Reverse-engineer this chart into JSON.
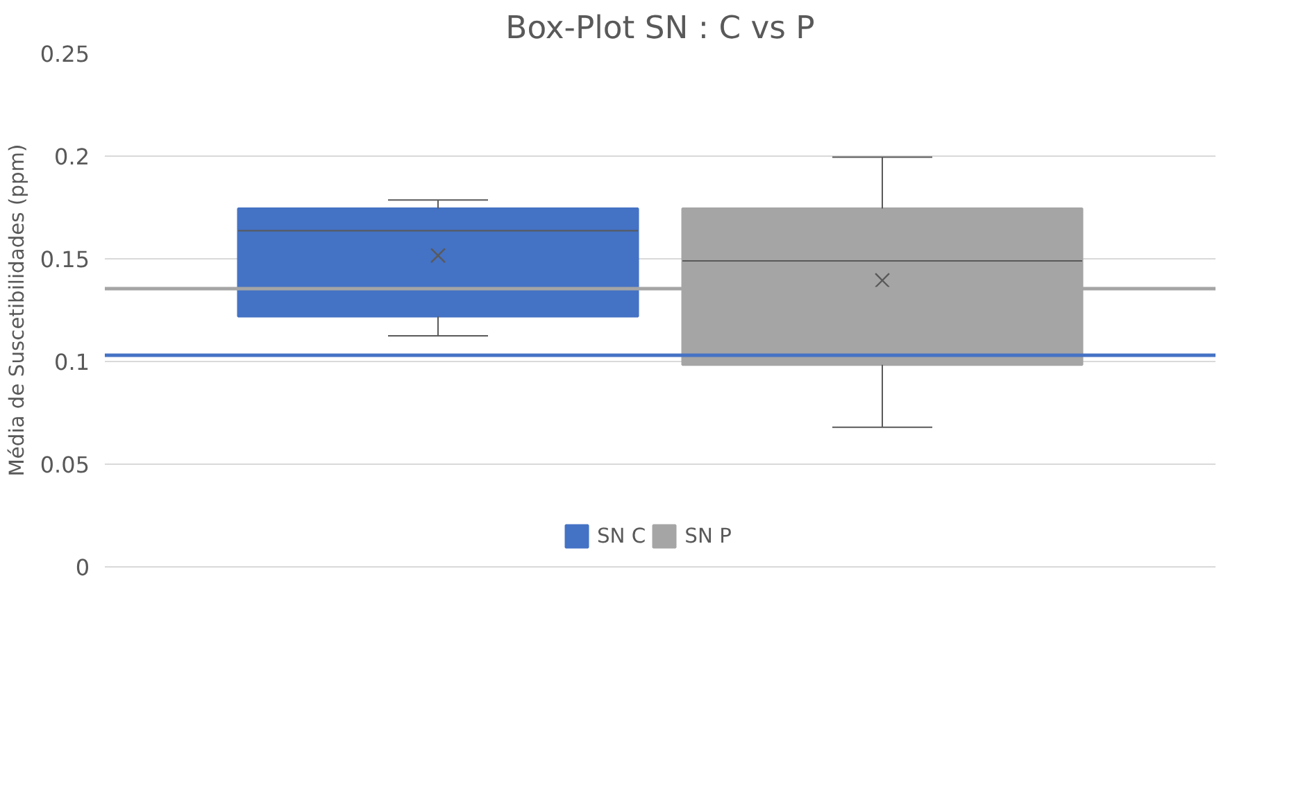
{
  "chart_data": {
    "type": "box",
    "title": "Box-Plot SN : C vs P",
    "ylabel": "Média de Suscetibilidades (ppm)",
    "categories": [
      null
    ],
    "series": [
      {
        "name": "SN C",
        "color": "#4472c4",
        "boxes": [
          {
            "low": 0.1125,
            "q1": 0.122,
            "median": 0.1637,
            "q3": 0.1745,
            "high": 0.1786,
            "mean": 0.1516
          }
        ]
      },
      {
        "name": "SN P",
        "color": "#a5a5a5",
        "boxes": [
          {
            "low": 0.068,
            "q1": 0.0984,
            "median": 0.149,
            "q3": 0.1745,
            "high": 0.1995,
            "mean": 0.1395
          }
        ]
      }
    ],
    "ref_lines": [
      {
        "axis": "y",
        "value": 0.1355,
        "color": "#a5a5a5"
      },
      {
        "axis": "y",
        "value": 0.103,
        "color": "#4472c4"
      }
    ],
    "ylim": [
      0,
      0.25
    ],
    "yticks": [
      0,
      0.05,
      0.1,
      0.15,
      0.2,
      0.25
    ],
    "grid": "y",
    "legend": "bottom",
    "marker": "cross",
    "tick_labels": "y"
  }
}
